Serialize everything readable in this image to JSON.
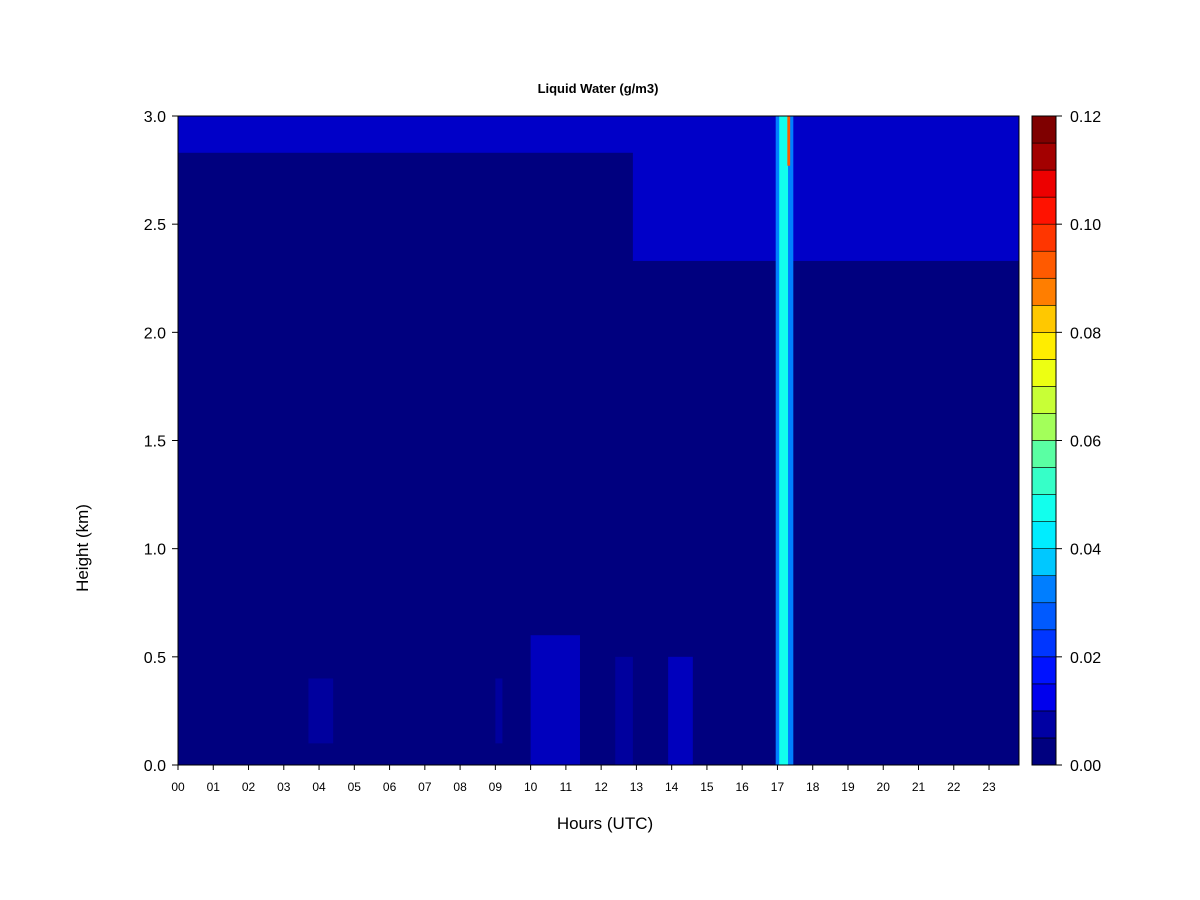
{
  "chart_data": {
    "type": "heatmap",
    "title": "Liquid Water (g/m3)",
    "xlabel": "Hours (UTC)",
    "ylabel": "Height (km)",
    "xlim": [
      0,
      23.85
    ],
    "ylim": [
      0,
      3.0
    ],
    "x_tick_labels": [
      "00",
      "01",
      "02",
      "03",
      "04",
      "05",
      "06",
      "07",
      "08",
      "09",
      "10",
      "11",
      "12",
      "13",
      "14",
      "15",
      "16",
      "17",
      "18",
      "19",
      "20",
      "21",
      "22",
      "23"
    ],
    "y_ticks": [
      0.0,
      0.5,
      1.0,
      1.5,
      2.0,
      2.5,
      3.0
    ],
    "y_tick_labels": [
      "0.0",
      "0.5",
      "1.0",
      "1.5",
      "2.0",
      "2.5",
      "3.0"
    ],
    "colorbar": {
      "range": [
        0.0,
        0.12
      ],
      "levels": 24,
      "tick_values": [
        0.0,
        0.02,
        0.04,
        0.06,
        0.08,
        0.1,
        0.12
      ],
      "tick_labels": [
        "0.00",
        "0.02",
        "0.04",
        "0.06",
        "0.08",
        "0.10",
        "0.12"
      ],
      "colors": [
        "#00007f",
        "#0000a3",
        "#0000c8",
        "#0000ed",
        "#0012ff",
        "#0036ff",
        "#005aff",
        "#007eff",
        "#00a3ff",
        "#00c8ff",
        "#00edff",
        "#12ffed",
        "#36ffc8",
        "#5affa3",
        "#7eff7e",
        "#a3ff5a",
        "#c8ff36",
        "#edff12",
        "#ffed00",
        "#ffc800",
        "#ffa300",
        "#ff7e00",
        "#ff5a00",
        "#ff3600",
        "#ff1200",
        "#ed0000",
        "#c80000",
        "#a30000",
        "#7f0000"
      ]
    },
    "background_value": 0.002,
    "features": [
      {
        "kind": "cloud-layer",
        "hours": [
          0.0,
          23.85
        ],
        "height_km": [
          2.83,
          3.0
        ],
        "value": 0.012
      },
      {
        "kind": "cloud-layer",
        "hours": [
          12.9,
          23.85
        ],
        "height_km": [
          2.33,
          3.0
        ],
        "value": 0.011
      },
      {
        "kind": "precip-column",
        "hours": [
          16.95,
          17.45
        ],
        "height_km": [
          0.0,
          3.0
        ],
        "value": 0.03
      },
      {
        "kind": "precip-core",
        "hours": [
          17.05,
          17.3
        ],
        "height_km": [
          0.0,
          3.0
        ],
        "value": 0.048
      },
      {
        "kind": "precip-peak",
        "hours": [
          17.28,
          17.36
        ],
        "height_km": [
          2.77,
          3.0
        ],
        "value": 0.095
      },
      {
        "kind": "low-patch",
        "hours": [
          3.7,
          4.4
        ],
        "height_km": [
          0.1,
          0.4
        ],
        "value": 0.008
      },
      {
        "kind": "low-patch",
        "hours": [
          9.0,
          9.2
        ],
        "height_km": [
          0.1,
          0.4
        ],
        "value": 0.008
      },
      {
        "kind": "low-patch",
        "hours": [
          10.0,
          11.4
        ],
        "height_km": [
          0.0,
          0.6
        ],
        "value": 0.01
      },
      {
        "kind": "low-patch",
        "hours": [
          12.4,
          12.9
        ],
        "height_km": [
          0.0,
          0.5
        ],
        "value": 0.008
      },
      {
        "kind": "low-patch",
        "hours": [
          13.9,
          14.6
        ],
        "height_km": [
          0.0,
          0.5
        ],
        "value": 0.009
      }
    ]
  }
}
